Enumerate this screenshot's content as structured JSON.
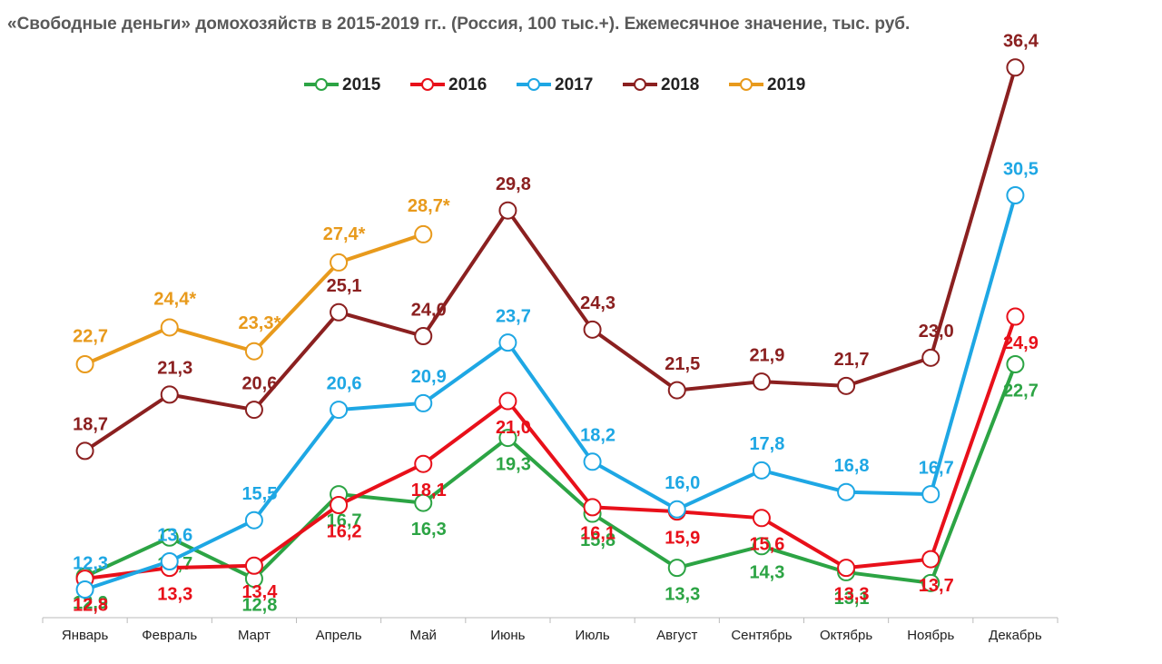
{
  "chart_data": {
    "type": "line",
    "title": "«Свободные деньги» домохозяйств в 2015-2019 гг.. (Россия, 100 тыс.+). Ежемесячное значение, тыс. руб.",
    "categories": [
      "Январь",
      "Февраль",
      "Март",
      "Апрель",
      "Май",
      "Июнь",
      "Июль",
      "Август",
      "Сентябрь",
      "Октябрь",
      "Ноябрь",
      "Декабрь"
    ],
    "ylim": [
      11,
      37
    ],
    "legend": "top",
    "series": [
      {
        "name": "2015",
        "color": "#2ca444",
        "values": [
          12.9,
          14.7,
          12.8,
          16.7,
          16.3,
          19.3,
          15.8,
          13.3,
          14.3,
          13.1,
          12.6,
          22.7
        ],
        "value_labels": [
          "12,9",
          "14,7",
          "12,8",
          "16,7",
          "16,3",
          "19,3",
          "15,8",
          "13,3",
          "14,3",
          "13,1",
          null,
          "22,7"
        ]
      },
      {
        "name": "2016",
        "color": "#e8101a",
        "values": [
          12.8,
          13.3,
          13.4,
          16.2,
          18.1,
          21.0,
          16.1,
          15.9,
          15.6,
          13.3,
          13.7,
          24.9
        ],
        "value_labels": [
          "12,8",
          "13,3",
          "13,4",
          "16,2",
          "18,1",
          "21,0",
          "16,1",
          "15,9",
          "15,6",
          "13,3",
          "13,7",
          "24,9"
        ]
      },
      {
        "name": "2017",
        "color": "#1ea7e4",
        "values": [
          12.3,
          13.6,
          15.5,
          20.6,
          20.9,
          23.7,
          18.2,
          16.0,
          17.8,
          16.8,
          16.7,
          30.5
        ],
        "value_labels": [
          "12,3",
          "13,6",
          "15,5",
          "20,6",
          "20,9",
          "23,7",
          "18,2",
          "16,0",
          "17,8",
          "16,8",
          "16,7",
          "30,5"
        ]
      },
      {
        "name": "2018",
        "color": "#8b2020",
        "values": [
          18.7,
          21.3,
          20.6,
          25.1,
          24.0,
          29.8,
          24.3,
          21.5,
          21.9,
          21.7,
          23.0,
          36.4
        ],
        "value_labels": [
          "18,7",
          "21,3",
          "20,6",
          "25,1",
          "24,0",
          "29,8",
          "24,3",
          "21,5",
          "21,9",
          "21,7",
          "23,0",
          "36,4"
        ]
      },
      {
        "name": "2019",
        "color": "#e89a1c",
        "values": [
          22.7,
          24.4,
          23.3,
          27.4,
          28.7,
          null,
          null,
          null,
          null,
          null,
          null,
          null
        ],
        "value_labels": [
          "22,7",
          "24,4*",
          "23,3*",
          "27,4*",
          "28,7*",
          null,
          null,
          null,
          null,
          null,
          null,
          null
        ]
      }
    ]
  }
}
